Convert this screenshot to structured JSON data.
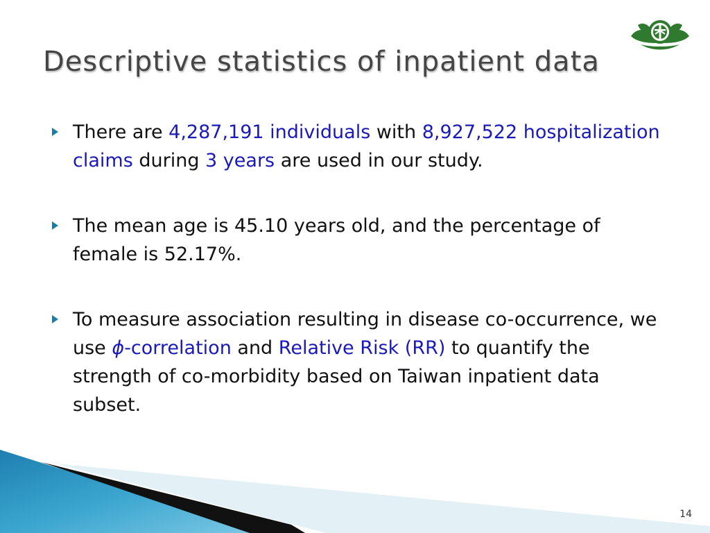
{
  "title": "Descriptive statistics of inpatient data",
  "logo": {
    "icon": "lotus-emblem-icon",
    "color": "#2f7a2e"
  },
  "bullets": [
    {
      "t1": "There are ",
      "h1": "4,287,191 individuals",
      "t2": " with ",
      "h2": "8,927,522 hospitalization claims",
      "t3": " during ",
      "h3": "3 years",
      "t4": " are used in our study."
    },
    {
      "text": "The mean age is 45.10 years old, and the percentage of female is 52.17%."
    },
    {
      "t1": "To measure association resulting in disease co-occurrence, we use ",
      "phi": "ϕ",
      "h1": "-correlation",
      "t2": " and ",
      "h2": "Relative Risk (RR)",
      "t3": " to quantify the strength of co-morbidity based on Taiwan inpatient data subset."
    }
  ],
  "page_number": "14",
  "colors": {
    "title": "#454545",
    "highlight": "#1a1ab8",
    "bullet_marker": "#1a7fa8",
    "wave_blue": "#2a8fbf",
    "wave_light": "#cfe8f3"
  }
}
